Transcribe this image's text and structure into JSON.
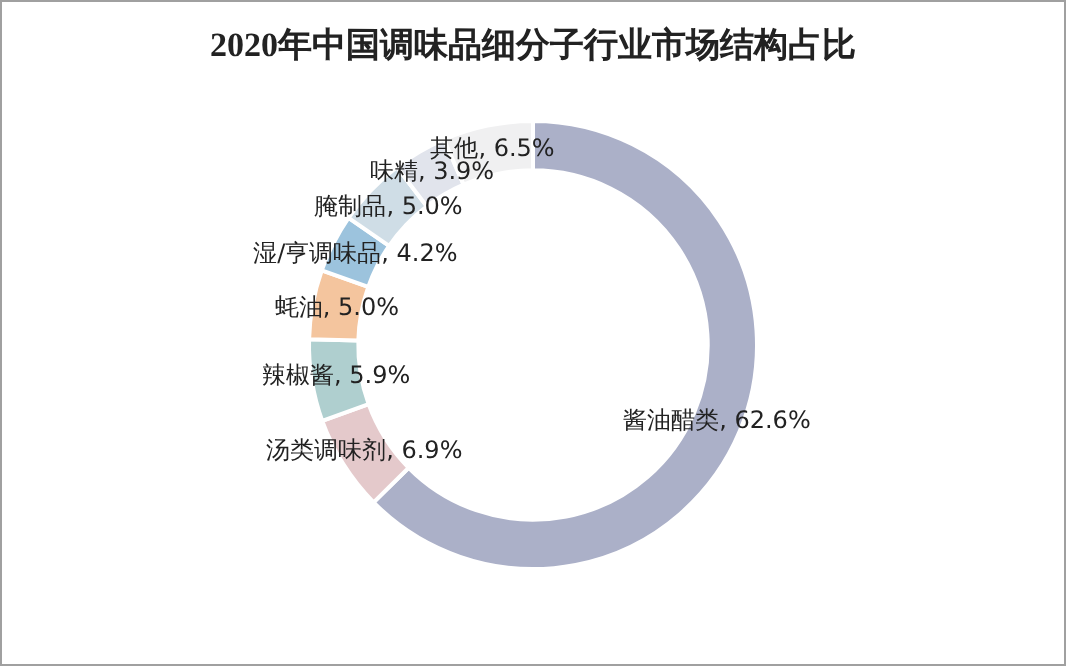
{
  "chart_data": {
    "type": "donut",
    "title": "2020年中国调味品细分子行业市场结构占比",
    "categories": [
      "酱油醋类",
      "汤类调味剂",
      "辣椒酱",
      "蚝油",
      "湿/亨调味品",
      "腌制品",
      "味精",
      "其他"
    ],
    "values": [
      62.6,
      6.9,
      5.9,
      5.0,
      4.2,
      5.0,
      3.9,
      6.5
    ],
    "value_labels": [
      "62.6%",
      "6.9%",
      "5.9%",
      "5.0%",
      "4.2%",
      "5.0%",
      "3.9%",
      "6.5%"
    ],
    "colors": [
      "#abb0c8",
      "#e4c9cb",
      "#afcfcf",
      "#f4c59e",
      "#9cc3dd",
      "#cfdde6",
      "#e1e4ec",
      "#f0f0f1"
    ],
    "legend": false
  }
}
